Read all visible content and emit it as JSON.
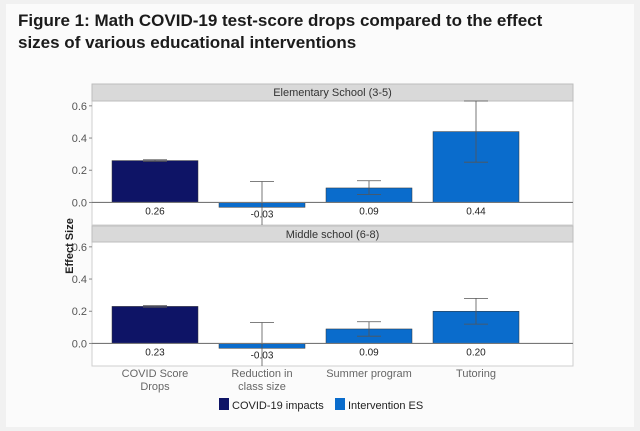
{
  "figure_title": "Figure 1: Math COVID-19 test-score drops compared to the effect sizes of various educational interventions",
  "chart_data": [
    {
      "type": "bar",
      "panel_title": "Elementary School (3-5)",
      "categories": [
        "COVID Score Drops",
        "Reduction in class size",
        "Summer program",
        "Tutoring"
      ],
      "values": [
        0.26,
        -0.03,
        0.09,
        0.44
      ],
      "value_labels": [
        "0.26",
        "-0.03",
        "0.09",
        "0.44"
      ],
      "error_low": [
        0.255,
        -0.19,
        0.05,
        0.25
      ],
      "error_high": [
        0.265,
        0.13,
        0.135,
        0.63
      ],
      "series_of_category": [
        "COVID-19 impacts",
        "Intervention ES",
        "Intervention ES",
        "Intervention ES"
      ],
      "ylabel": "Effect Size",
      "ylim": [
        -0.14,
        0.63
      ],
      "yticks": [
        "0.0",
        "0.2",
        "0.4",
        "0.6"
      ],
      "grid": false
    },
    {
      "type": "bar",
      "panel_title": "Middle school (6-8)",
      "categories": [
        "COVID Score Drops",
        "Reduction in class size",
        "Summer program",
        "Tutoring"
      ],
      "values": [
        0.23,
        -0.03,
        0.09,
        0.2
      ],
      "value_labels": [
        "0.23",
        "-0.03",
        "0.09",
        "0.20"
      ],
      "error_low": [
        0.225,
        -0.19,
        0.045,
        0.12
      ],
      "error_high": [
        0.235,
        0.13,
        0.135,
        0.28
      ],
      "series_of_category": [
        "COVID-19 impacts",
        "Intervention ES",
        "Intervention ES",
        "Intervention ES"
      ],
      "ylabel": "Effect Size",
      "ylim": [
        -0.14,
        0.63
      ],
      "yticks": [
        "0.0",
        "0.2",
        "0.4",
        "0.6"
      ],
      "grid": false
    }
  ],
  "x_tick_labels": [
    [
      "COVID Score",
      "Drops"
    ],
    [
      "Reduction in",
      "class size"
    ],
    [
      "Summer program"
    ],
    [
      "Tutoring"
    ]
  ],
  "legend": {
    "position": "bottom",
    "items": [
      {
        "label": "COVID-19 impacts",
        "color": "#0e1466"
      },
      {
        "label": "Intervention ES",
        "color": "#0a6ccc"
      }
    ]
  }
}
